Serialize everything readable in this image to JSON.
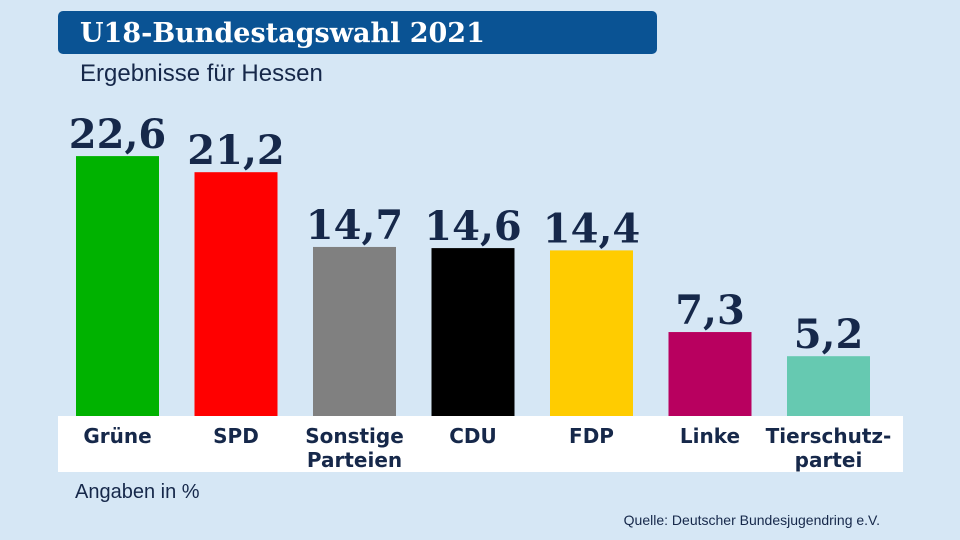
{
  "header": {
    "title": "U18-Bundestagswahl 2021",
    "subtitle": "Ergebnisse für Hessen"
  },
  "footnote": "Angaben in %",
  "source": "Quelle: Deutscher Bundesjugendring e.V.",
  "chart_data": {
    "type": "bar",
    "title": "U18-Bundestagswahl 2021",
    "subtitle": "Ergebnisse für Hessen",
    "categories": [
      "Grüne",
      "SPD",
      "Sonstige Parteien",
      "CDU",
      "FDP",
      "Linke",
      "Tierschutz-partei"
    ],
    "category_lines": [
      [
        "Grüne"
      ],
      [
        "SPD"
      ],
      [
        "Sonstige",
        "Parteien"
      ],
      [
        "CDU"
      ],
      [
        "FDP"
      ],
      [
        "Linke"
      ],
      [
        "Tierschutz-",
        "partei"
      ]
    ],
    "values": [
      22.6,
      21.2,
      14.7,
      14.6,
      14.4,
      7.3,
      5.2
    ],
    "value_labels": [
      "22,6",
      "21,2",
      "14,7",
      "14,6",
      "14,4",
      "7,3",
      "5,2"
    ],
    "colors": [
      "#00b200",
      "#ff0000",
      "#808080",
      "#000000",
      "#ffcc00",
      "#b8005f",
      "#66c9b1"
    ],
    "unit": "%",
    "grid": false,
    "legend": "none"
  }
}
